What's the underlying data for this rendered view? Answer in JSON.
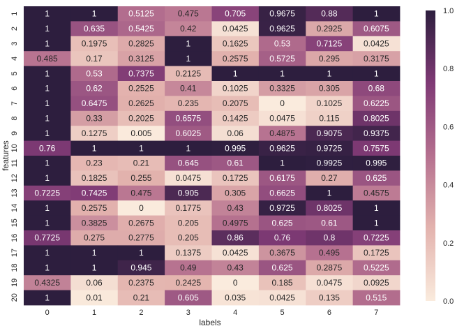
{
  "chart_data": {
    "type": "heatmap",
    "title": "",
    "xlabel": "labels",
    "ylabel": "features",
    "x_categories": [
      "0",
      "1",
      "2",
      "3",
      "4",
      "5",
      "6",
      "7"
    ],
    "y_categories": [
      "1",
      "2",
      "3",
      "4",
      "5",
      "6",
      "7",
      "8",
      "9",
      "10",
      "11",
      "12",
      "13",
      "14",
      "15",
      "16",
      "17",
      "18",
      "19",
      "20"
    ],
    "values": [
      [
        1,
        1,
        0.5125,
        0.475,
        0.705,
        0.9675,
        0.88,
        1
      ],
      [
        1,
        0.635,
        0.5425,
        0.42,
        0.0425,
        0.9625,
        0.2925,
        0.6075
      ],
      [
        1,
        0.1975,
        0.2825,
        1,
        0.1625,
        0.53,
        0.7125,
        0.0425
      ],
      [
        0.485,
        0.17,
        0.3125,
        1,
        0.2575,
        0.5725,
        0.295,
        0.3175
      ],
      [
        1,
        0.53,
        0.7375,
        0.2125,
        1,
        1,
        1,
        1
      ],
      [
        1,
        0.62,
        0.2525,
        0.41,
        0.1025,
        0.3325,
        0.305,
        0.68
      ],
      [
        1,
        0.6475,
        0.2625,
        0.235,
        0.2075,
        0,
        0.1025,
        0.6225
      ],
      [
        1,
        0.33,
        0.2025,
        0.6575,
        0.1425,
        0.0475,
        0.115,
        0.8025
      ],
      [
        1,
        0.1275,
        0.005,
        0.6025,
        0.06,
        0.4875,
        0.9075,
        0.9375
      ],
      [
        0.76,
        1,
        1,
        1,
        0.995,
        0.9625,
        0.9725,
        0.7575
      ],
      [
        1,
        0.23,
        0.21,
        0.645,
        0.61,
        1,
        0.9925,
        0.995
      ],
      [
        1,
        0.1825,
        0.255,
        0.0475,
        0.1725,
        0.6175,
        0.27,
        0.625
      ],
      [
        0.7225,
        0.7425,
        0.475,
        0.905,
        0.305,
        0.6625,
        1,
        0.4575
      ],
      [
        1,
        0.2575,
        0,
        0.1775,
        0.43,
        0.9725,
        0.8025,
        1
      ],
      [
        1,
        0.3825,
        0.2675,
        0.205,
        0.4975,
        0.625,
        0.61,
        1
      ],
      [
        0.7725,
        0.275,
        0.2775,
        0.205,
        0.86,
        0.76,
        0.8,
        0.7225
      ],
      [
        1,
        1,
        1,
        0.1375,
        0.0425,
        0.3675,
        0.495,
        0.1725
      ],
      [
        1,
        1,
        0.945,
        0.49,
        0.43,
        0.625,
        0.2875,
        0.5225
      ],
      [
        0.4325,
        0.06,
        0.2375,
        0.2425,
        0,
        0.185,
        0.0475,
        0.0925
      ],
      [
        1,
        0.01,
        0.21,
        0.605,
        0.035,
        0.0425,
        0.135,
        0.515
      ]
    ],
    "value_labels": [
      [
        "1",
        "1",
        "0.5125",
        "0.475",
        "0.705",
        "0.9675",
        "0.88",
        "1"
      ],
      [
        "1",
        "0.635",
        "0.5425",
        "0.42",
        "0.0425",
        "0.9625",
        "0.2925",
        "0.6075"
      ],
      [
        "1",
        "0.1975",
        "0.2825",
        "1",
        "0.1625",
        "0.53",
        "0.7125",
        "0.0425"
      ],
      [
        "0.485",
        "0.17",
        "0.3125",
        "1",
        "0.2575",
        "0.5725",
        "0.295",
        "0.3175"
      ],
      [
        "1",
        "0.53",
        "0.7375",
        "0.2125",
        "1",
        "1",
        "1",
        "1"
      ],
      [
        "1",
        "0.62",
        "0.2525",
        "0.41",
        "0.1025",
        "0.3325",
        "0.305",
        "0.68"
      ],
      [
        "1",
        "0.6475",
        "0.2625",
        "0.235",
        "0.2075",
        "0",
        "0.1025",
        "0.6225"
      ],
      [
        "1",
        "0.33",
        "0.2025",
        "0.6575",
        "0.1425",
        "0.0475",
        "0.115",
        "0.8025"
      ],
      [
        "1",
        "0.1275",
        "0.005",
        "0.6025",
        "0.06",
        "0.4875",
        "0.9075",
        "0.9375"
      ],
      [
        "0.76",
        "1",
        "1",
        "1",
        "0.995",
        "0.9625",
        "0.9725",
        "0.7575"
      ],
      [
        "1",
        "0.23",
        "0.21",
        "0.645",
        "0.61",
        "1",
        "0.9925",
        "0.995"
      ],
      [
        "1",
        "0.1825",
        "0.255",
        "0.0475",
        "0.1725",
        "0.6175",
        "0.27",
        "0.625"
      ],
      [
        "0.7225",
        "0.7425",
        "0.475",
        "0.905",
        "0.305",
        "0.6625",
        "1",
        "0.4575"
      ],
      [
        "1",
        "0.2575",
        "0",
        "0.1775",
        "0.43",
        "0.9725",
        "0.8025",
        "1"
      ],
      [
        "1",
        "0.3825",
        "0.2675",
        "0.205",
        "0.4975",
        "0.625",
        "0.61",
        "1"
      ],
      [
        "0.7725",
        "0.275",
        "0.2775",
        "0.205",
        "0.86",
        "0.76",
        "0.8",
        "0.7225"
      ],
      [
        "1",
        "1",
        "1",
        "0.1375",
        "0.0425",
        "0.3675",
        "0.495",
        "0.1725"
      ],
      [
        "1",
        "1",
        "0.945",
        "0.49",
        "0.43",
        "0.625",
        "0.2875",
        "0.5225"
      ],
      [
        "0.4325",
        "0.06",
        "0.2375",
        "0.2425",
        "0",
        "0.185",
        "0.0475",
        "0.0925"
      ],
      [
        "1",
        "0.01",
        "0.21",
        "0.605",
        "0.035",
        "0.0425",
        "0.135",
        "0.515"
      ]
    ],
    "colorbar": {
      "range": [
        0,
        1
      ],
      "ticks": [
        0.0,
        0.2,
        0.4,
        0.6,
        0.8,
        1.0
      ],
      "tick_labels": [
        "0.0",
        "0.2",
        "0.4",
        "0.6",
        "0.8",
        "1.0"
      ]
    },
    "colormap": {
      "low": "#faebdd",
      "mid_low": "#e3b3ae",
      "mid": "#b5708f",
      "mid_high": "#7f3a75",
      "high": "#2d1e3e"
    }
  }
}
